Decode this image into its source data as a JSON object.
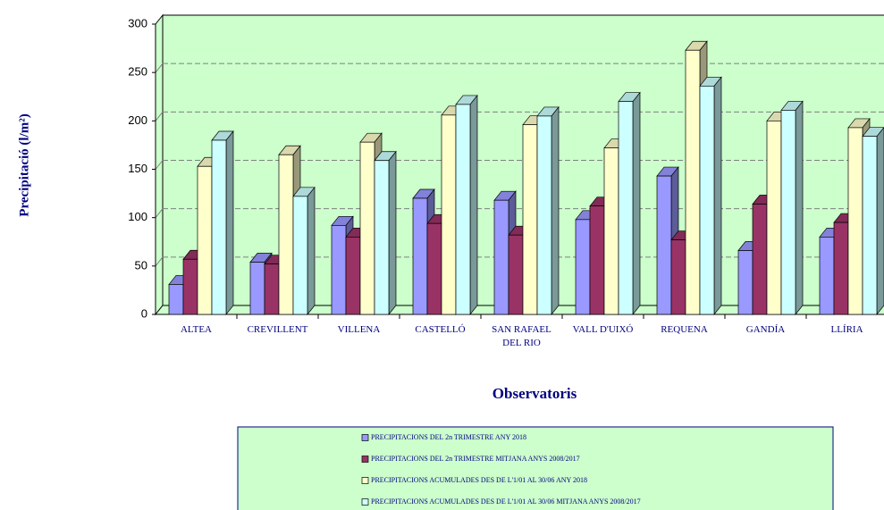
{
  "chart_data": {
    "type": "bar3d",
    "y_label": "Precipitació (l/m²)",
    "x_label": "Observatoris",
    "categories": [
      "ALTEA",
      "CREVILLENT",
      "VILLENA",
      "CASTELLÓ",
      "SAN RAFAEL DEL RIO",
      "VALL D'UIXÓ",
      "REQUENA",
      "GANDÍA",
      "LLÍRIA"
    ],
    "series": [
      {
        "name": "PRECIPITACIONS DEL 2n TRIMESTRE ANY 2018",
        "color": "#9999ff",
        "values": [
          31,
          54,
          92,
          120,
          118,
          98,
          143,
          66,
          80
        ]
      },
      {
        "name": "PRECIPITACIONS DEL 2n TRIMESTRE MITJANA ANYS 2008/2017",
        "color": "#993366",
        "values": [
          57,
          52,
          80,
          94,
          82,
          112,
          77,
          114,
          95
        ]
      },
      {
        "name": "PRECIPITACIONS ACUMULADES DES DE L'1/01 AL 30/06 ANY 2018",
        "color": "#ffffcc",
        "values": [
          153,
          165,
          178,
          206,
          196,
          172,
          273,
          200,
          193
        ]
      },
      {
        "name": "PRECIPITACIONS ACUMULADES DES DE L'1/01 AL 30/06 MITJANA ANYS 2008/2017",
        "color": "#ccffff",
        "values": [
          180,
          122,
          159,
          217,
          205,
          220,
          236,
          211,
          184
        ]
      }
    ],
    "ylim": [
      0,
      300
    ],
    "yticks": [
      0,
      50,
      100,
      150,
      200,
      250,
      300
    ],
    "grid": true,
    "background": "#ccffcc"
  }
}
